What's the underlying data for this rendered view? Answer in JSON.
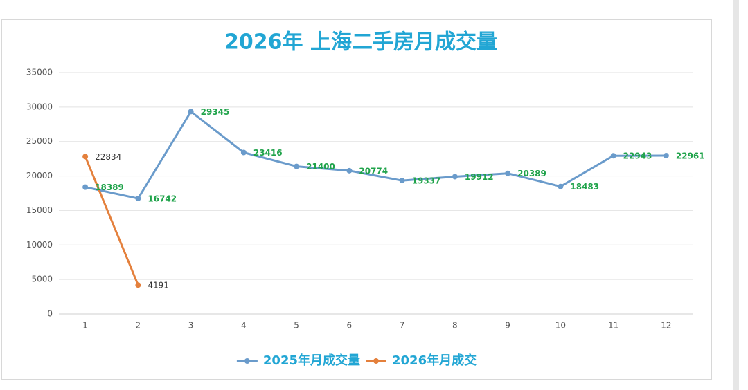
{
  "chart_data": {
    "type": "line",
    "title": "2026年 上海二手房月成交量",
    "categories": [
      "1",
      "2",
      "3",
      "4",
      "5",
      "6",
      "7",
      "8",
      "9",
      "10",
      "11",
      "12"
    ],
    "series": [
      {
        "name": "2025年月成交量",
        "color": "#6a9bcb",
        "label_color": "#1fa34a",
        "values": [
          18389,
          16742,
          29345,
          23416,
          21400,
          20774,
          19337,
          19912,
          20389,
          18483,
          22943,
          22961
        ]
      },
      {
        "name": "2026年月成交",
        "color": "#e4803c",
        "label_color": "#333333",
        "values": [
          22834,
          4191,
          null,
          null,
          null,
          null,
          null,
          null,
          null,
          null,
          null,
          null
        ]
      }
    ],
    "ylim": [
      0,
      35000
    ],
    "yticks": [
      0,
      5000,
      10000,
      15000,
      20000,
      25000,
      30000,
      35000
    ],
    "grid": true,
    "legend": "bottom"
  }
}
